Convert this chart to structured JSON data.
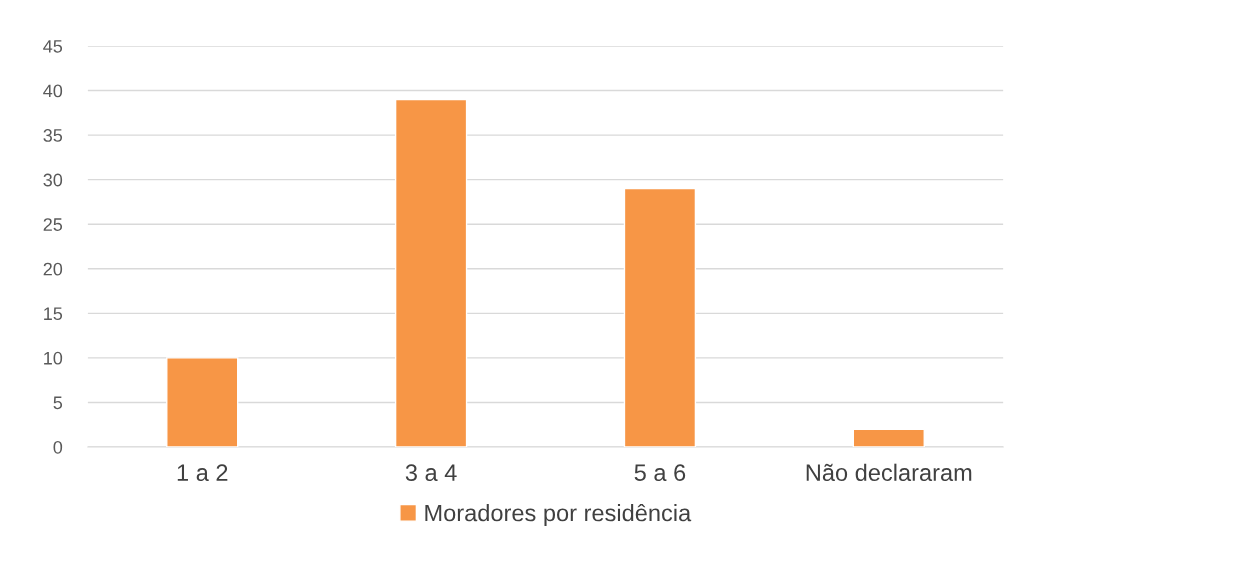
{
  "chart_data": {
    "type": "bar",
    "categories": [
      "1 a 2",
      "3 a 4",
      "5 a 6",
      "Não declararam"
    ],
    "series": [
      {
        "name": "Moradores por residência",
        "color": "#f79646",
        "values": [
          10,
          39,
          29,
          2
        ]
      }
    ],
    "ylim": [
      0,
      45
    ],
    "yticks": [
      0,
      5,
      10,
      15,
      20,
      25,
      30,
      35,
      40,
      45
    ],
    "grid": "y",
    "legend": "bottom"
  }
}
